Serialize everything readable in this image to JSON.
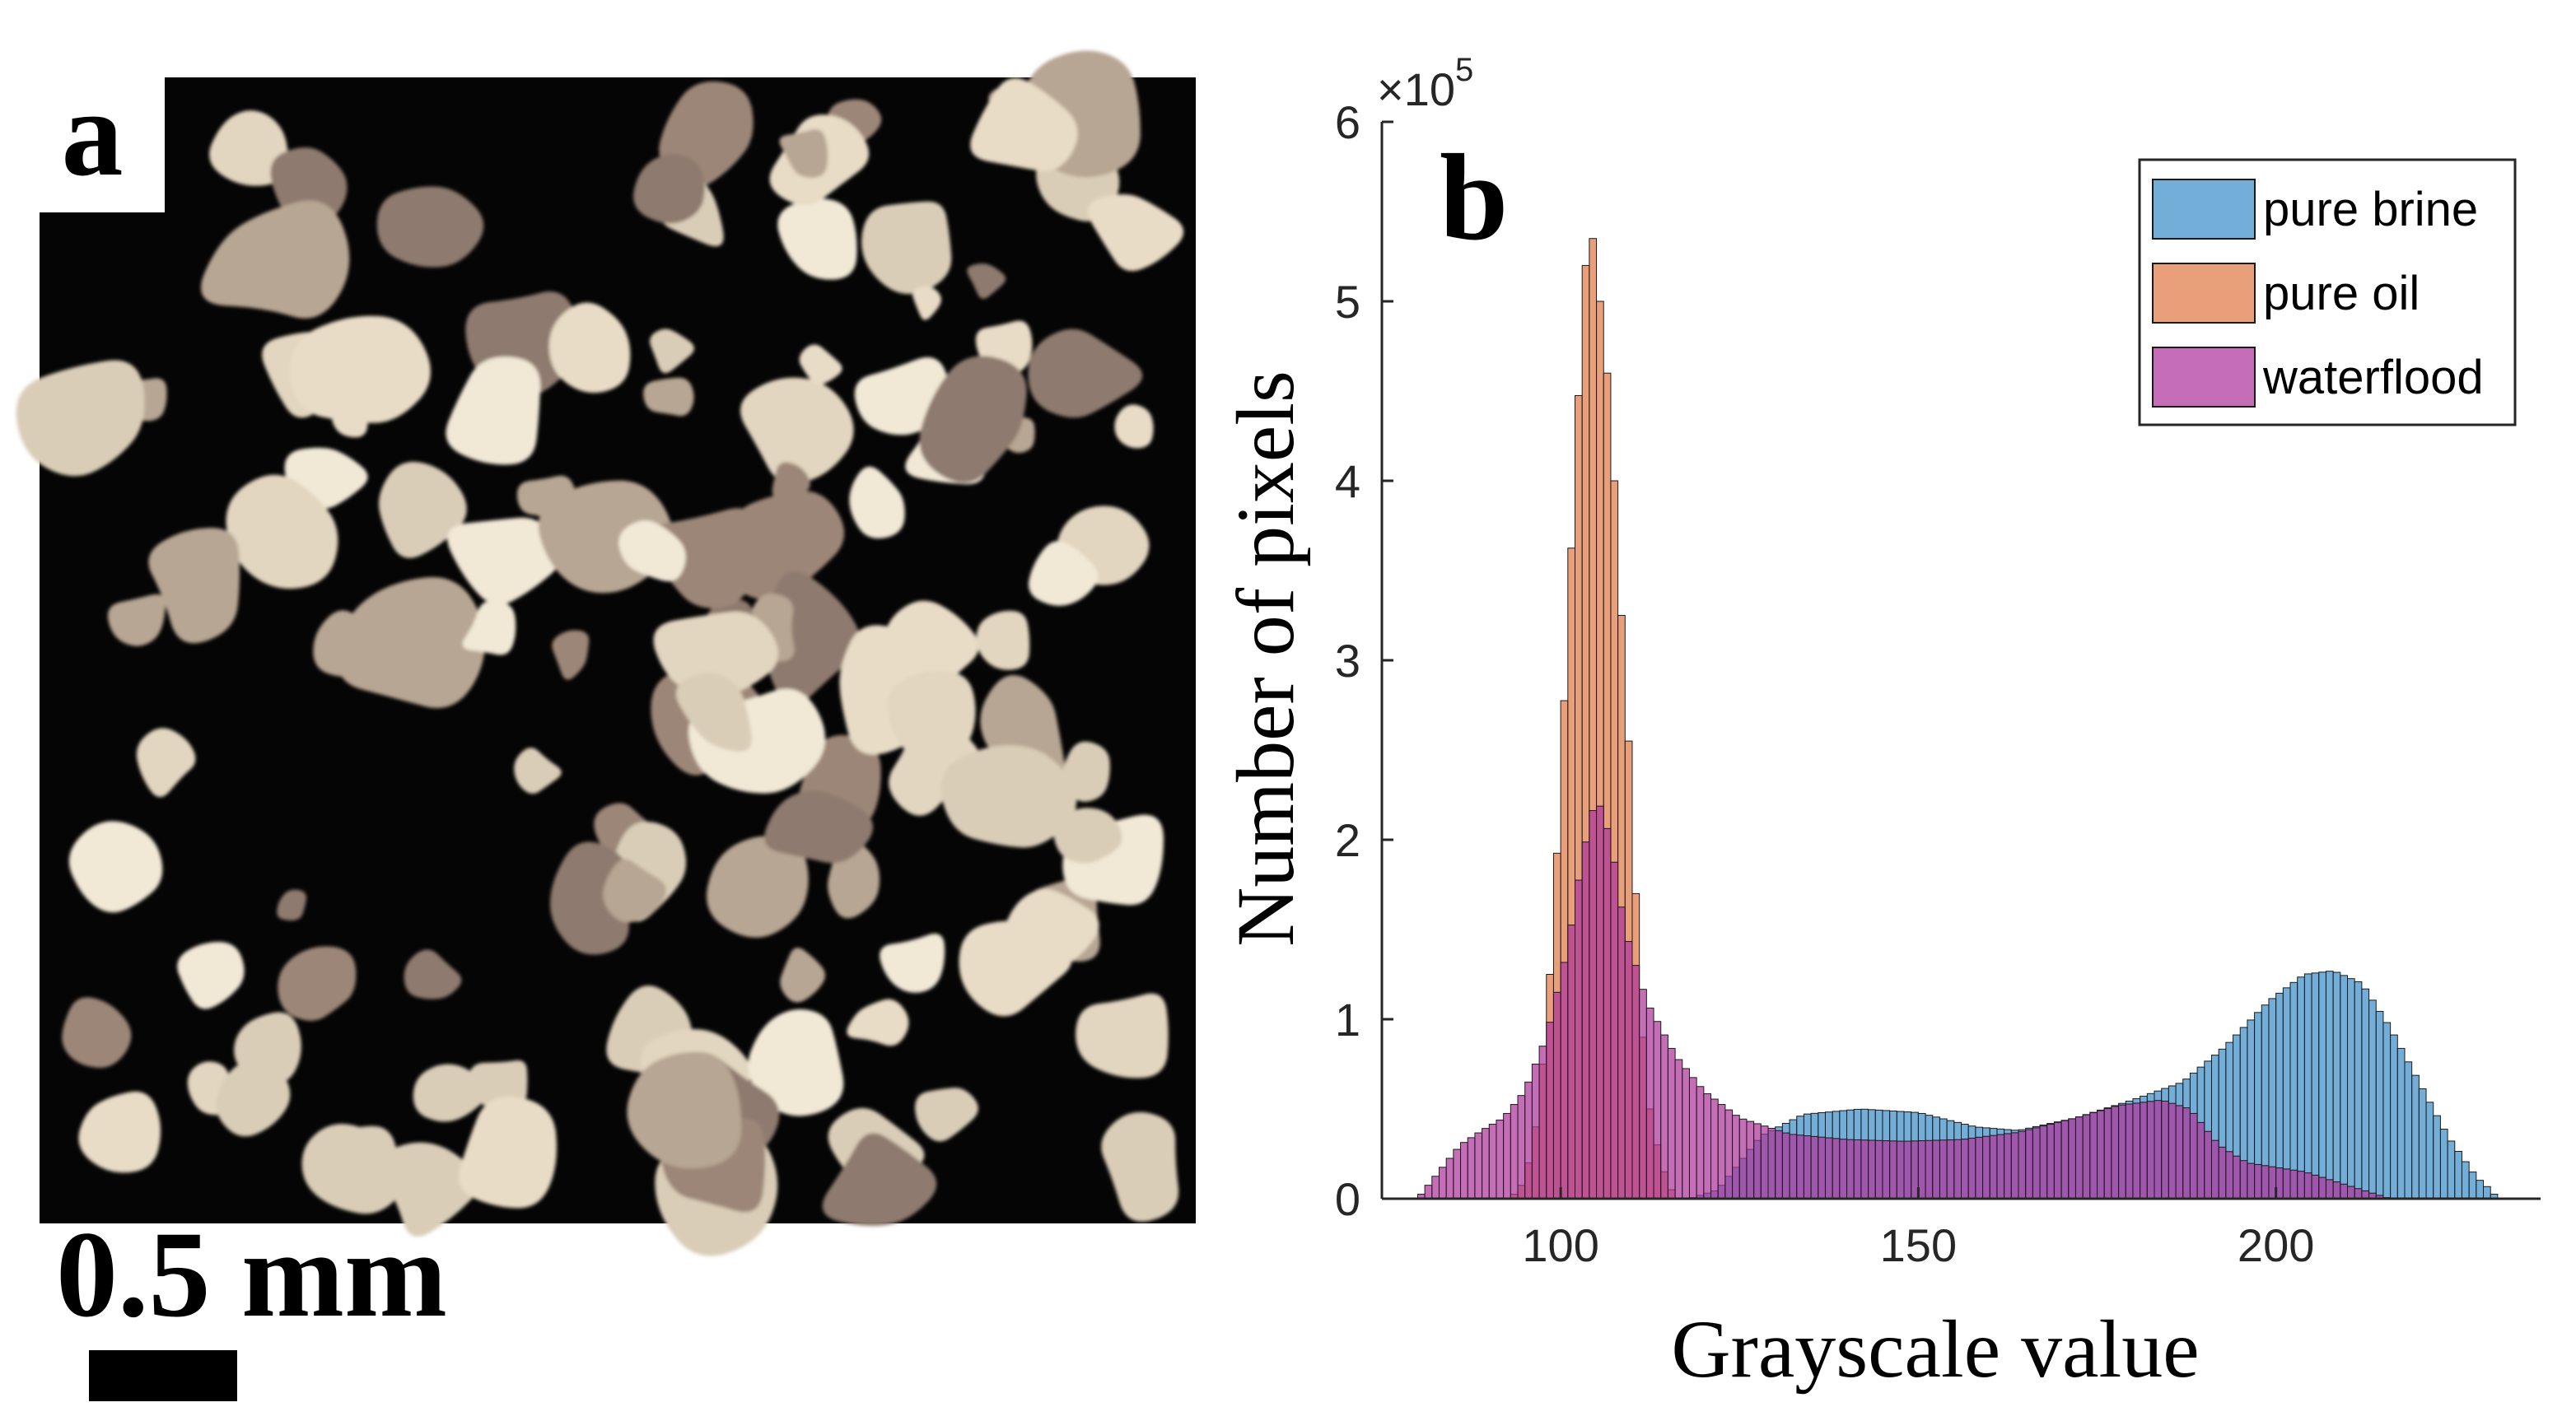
{
  "panel_a": {
    "label": "a",
    "scale_bar_label": "0.5 mm"
  },
  "chart_data": {
    "type": "histogram",
    "panel_label": "b",
    "xlabel": "Grayscale value",
    "ylabel": "Number of pixels",
    "y_multiplier_label": "×10",
    "y_multiplier_exponent": "5",
    "xlim": [
      75,
      237
    ],
    "ylim": [
      0,
      6
    ],
    "xticks": [
      100,
      150,
      200
    ],
    "yticks": [
      0,
      1,
      2,
      3,
      4,
      5,
      6
    ],
    "legend_position": "top-right",
    "bin_width": 1,
    "series": [
      {
        "name": "pure brine",
        "color": "#3d8fc9",
        "points": [
          [
            118,
            0
          ],
          [
            122,
            0.05
          ],
          [
            128,
            0.35
          ],
          [
            134,
            0.47
          ],
          [
            142,
            0.5
          ],
          [
            150,
            0.48
          ],
          [
            158,
            0.4
          ],
          [
            164,
            0.38
          ],
          [
            172,
            0.45
          ],
          [
            180,
            0.55
          ],
          [
            187,
            0.65
          ],
          [
            193,
            0.85
          ],
          [
            199,
            1.1
          ],
          [
            204,
            1.25
          ],
          [
            208,
            1.27
          ],
          [
            212,
            1.2
          ],
          [
            216,
            0.95
          ],
          [
            220,
            0.65
          ],
          [
            224,
            0.35
          ],
          [
            228,
            0.12
          ],
          [
            230,
            0.05
          ],
          [
            231,
            0
          ]
        ]
      },
      {
        "name": "pure oil",
        "color": "#e07a45",
        "points": [
          [
            93,
            0
          ],
          [
            95,
            0.1
          ],
          [
            97,
            0.5
          ],
          [
            99,
            1.5
          ],
          [
            101,
            3.2
          ],
          [
            103,
            4.9
          ],
          [
            104,
            5.5
          ],
          [
            105,
            5.2
          ],
          [
            107,
            4.4
          ],
          [
            108,
            3.6
          ],
          [
            110,
            2.2
          ],
          [
            111,
            1.2
          ],
          [
            112,
            0.6
          ],
          [
            114,
            0.2
          ],
          [
            116,
            0
          ]
        ]
      },
      {
        "name": "waterflood",
        "color": "#b0359c",
        "points": [
          [
            80,
            0
          ],
          [
            83,
            0.15
          ],
          [
            86,
            0.3
          ],
          [
            89,
            0.38
          ],
          [
            92,
            0.45
          ],
          [
            95,
            0.6
          ],
          [
            98,
            0.9
          ],
          [
            101,
            1.4
          ],
          [
            103,
            1.9
          ],
          [
            105,
            2.25
          ],
          [
            107,
            2.0
          ],
          [
            109,
            1.5
          ],
          [
            112,
            1.1
          ],
          [
            116,
            0.8
          ],
          [
            120,
            0.6
          ],
          [
            125,
            0.45
          ],
          [
            132,
            0.36
          ],
          [
            140,
            0.33
          ],
          [
            148,
            0.32
          ],
          [
            156,
            0.33
          ],
          [
            164,
            0.37
          ],
          [
            172,
            0.45
          ],
          [
            178,
            0.52
          ],
          [
            184,
            0.55
          ],
          [
            188,
            0.5
          ],
          [
            192,
            0.3
          ],
          [
            196,
            0.2
          ],
          [
            204,
            0.15
          ],
          [
            212,
            0.05
          ],
          [
            216,
            0
          ]
        ]
      }
    ]
  }
}
